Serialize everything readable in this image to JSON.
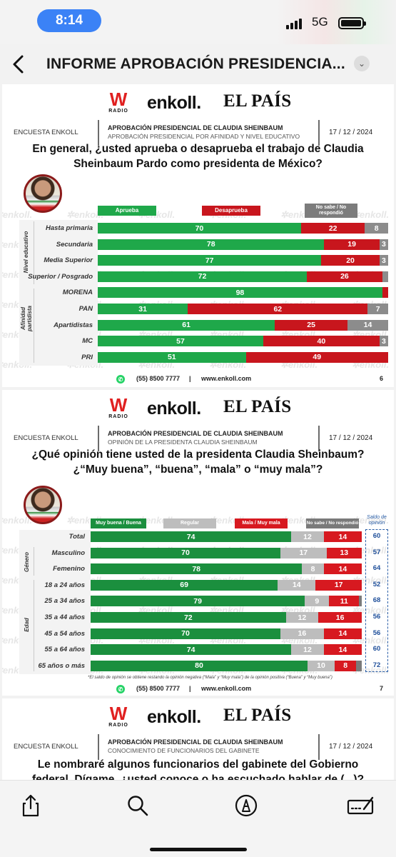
{
  "status_bar": {
    "time": "8:14",
    "network": "5G"
  },
  "nav": {
    "title": "INFORME APROBACIÓN PRESIDENCIA..."
  },
  "brand": {
    "w": "W",
    "radio": "RADIO",
    "enkoll": "enkoll.",
    "elpais": "EL PAÍS",
    "watermark": "enkoll."
  },
  "slide1": {
    "encuesta": "ENCUESTA ENKOLL",
    "title1": "APROBACIÓN PRESIDENCIAL DE CLAUDIA SHEINBAUM",
    "title2": "APROBACIÓN PRESIDENCIAL POR AFINIDAD Y NIVEL EDUCATIVO",
    "date": "17 / 12 / 2024",
    "question": "En general, ¿usted aprueba o desaprueba el trabajo de Claudia Sheinbaum Pardo como presidenta de México?",
    "legend": [
      "Aprueba",
      "Desaprueba",
      "No sabe  / No respondió"
    ],
    "groups": [
      "Nivel educativo",
      "Afinidad partidista"
    ],
    "phone": "(55) 8500 7777",
    "sep": "|",
    "web": "www.enkoll.com",
    "page": "6"
  },
  "slide2": {
    "encuesta": "ENCUESTA ENKOLL",
    "title1": "APROBACIÓN PRESIDENCIAL DE CLAUDIA SHEINBAUM",
    "title2": "OPINIÓN DE LA PRESIDENTA  CLAUDIA SHEINBAUM",
    "date": "17 / 12 / 2024",
    "question": "¿Qué opinión tiene usted de la presidenta Claudia Sheinbaum? ¿“Muy buena”, “buena”, “mala” o “muy mala”?",
    "legend": [
      "Muy buena / Buena",
      "Regular",
      "Mala / Muy mala",
      "No sabe / No respondió"
    ],
    "saldo_header": "Saldo de opinión",
    "groups": [
      "Género",
      "Edad"
    ],
    "note": "*El saldo de opinión se obtiene restando la opinión negativa (“Mala” y “Muy mala”) de la opinión positiva (“Buena” y “Muy buena”)",
    "phone": "(55) 8500 7777",
    "sep": "|",
    "web": "www.enkoll.com",
    "page": "7"
  },
  "slide3": {
    "encuesta": "ENCUESTA ENKOLL",
    "title1": "APROBACIÓN PRESIDENCIAL DE CLAUDIA SHEINBAUM",
    "title2": "CONOCIMIENTO DE FUNCIONARIOS DEL GABINETE",
    "date": "17 / 12 / 2024",
    "question": "Le nombraré algunos funcionarios del gabinete del Gobierno federal. Dígame, ¿usted conoce o ha escuchado hablar de (...)?"
  },
  "chart_data": [
    {
      "type": "bar",
      "stacked": true,
      "orientation": "horizontal",
      "categories": [
        "Hasta primaria",
        "Secundaria",
        "Media Superior",
        "Superior / Posgrado",
        "MORENA",
        "PAN",
        "Apartidistas",
        "MC",
        "PRI"
      ],
      "series": [
        {
          "name": "Aprueba",
          "color": "#1fa84a",
          "values": [
            70,
            78,
            77,
            72,
            98,
            31,
            61,
            57,
            51
          ]
        },
        {
          "name": "Desaprueba",
          "color": "#c8161d",
          "values": [
            22,
            19,
            20,
            26,
            2,
            62,
            25,
            40,
            49
          ]
        },
        {
          "name": "No sabe  / No respondió",
          "color": "#8c8c8c",
          "values": [
            8,
            3,
            3,
            2,
            null,
            7,
            14,
            3,
            null
          ]
        }
      ]
    },
    {
      "type": "bar",
      "stacked": true,
      "orientation": "horizontal",
      "categories": [
        "Total",
        "Masculino",
        "Femenino",
        "18 a 24 años",
        "25 a 34 años",
        "35 a 44 años",
        "45 a 54 años",
        "55 a 64 años",
        "65 años o más"
      ],
      "series": [
        {
          "name": "Muy buena / Buena",
          "color": "#1b8f3e",
          "values": [
            74,
            70,
            78,
            69,
            79,
            72,
            70,
            74,
            80
          ]
        },
        {
          "name": "Regular",
          "color": "#bdbdbd",
          "values": [
            12,
            17,
            8,
            14,
            9,
            12,
            16,
            12,
            10
          ]
        },
        {
          "name": "Mala / Muy mala",
          "color": "#d71920",
          "values": [
            14,
            13,
            14,
            17,
            11,
            16,
            14,
            14,
            8
          ]
        },
        {
          "name": "No sabe / No respondió",
          "color": "#7a7a7a",
          "values": [
            null,
            null,
            null,
            null,
            1,
            null,
            null,
            null,
            2
          ]
        }
      ],
      "saldo_de_opinion": [
        60,
        57,
        64,
        52,
        68,
        56,
        56,
        60,
        72
      ]
    }
  ]
}
